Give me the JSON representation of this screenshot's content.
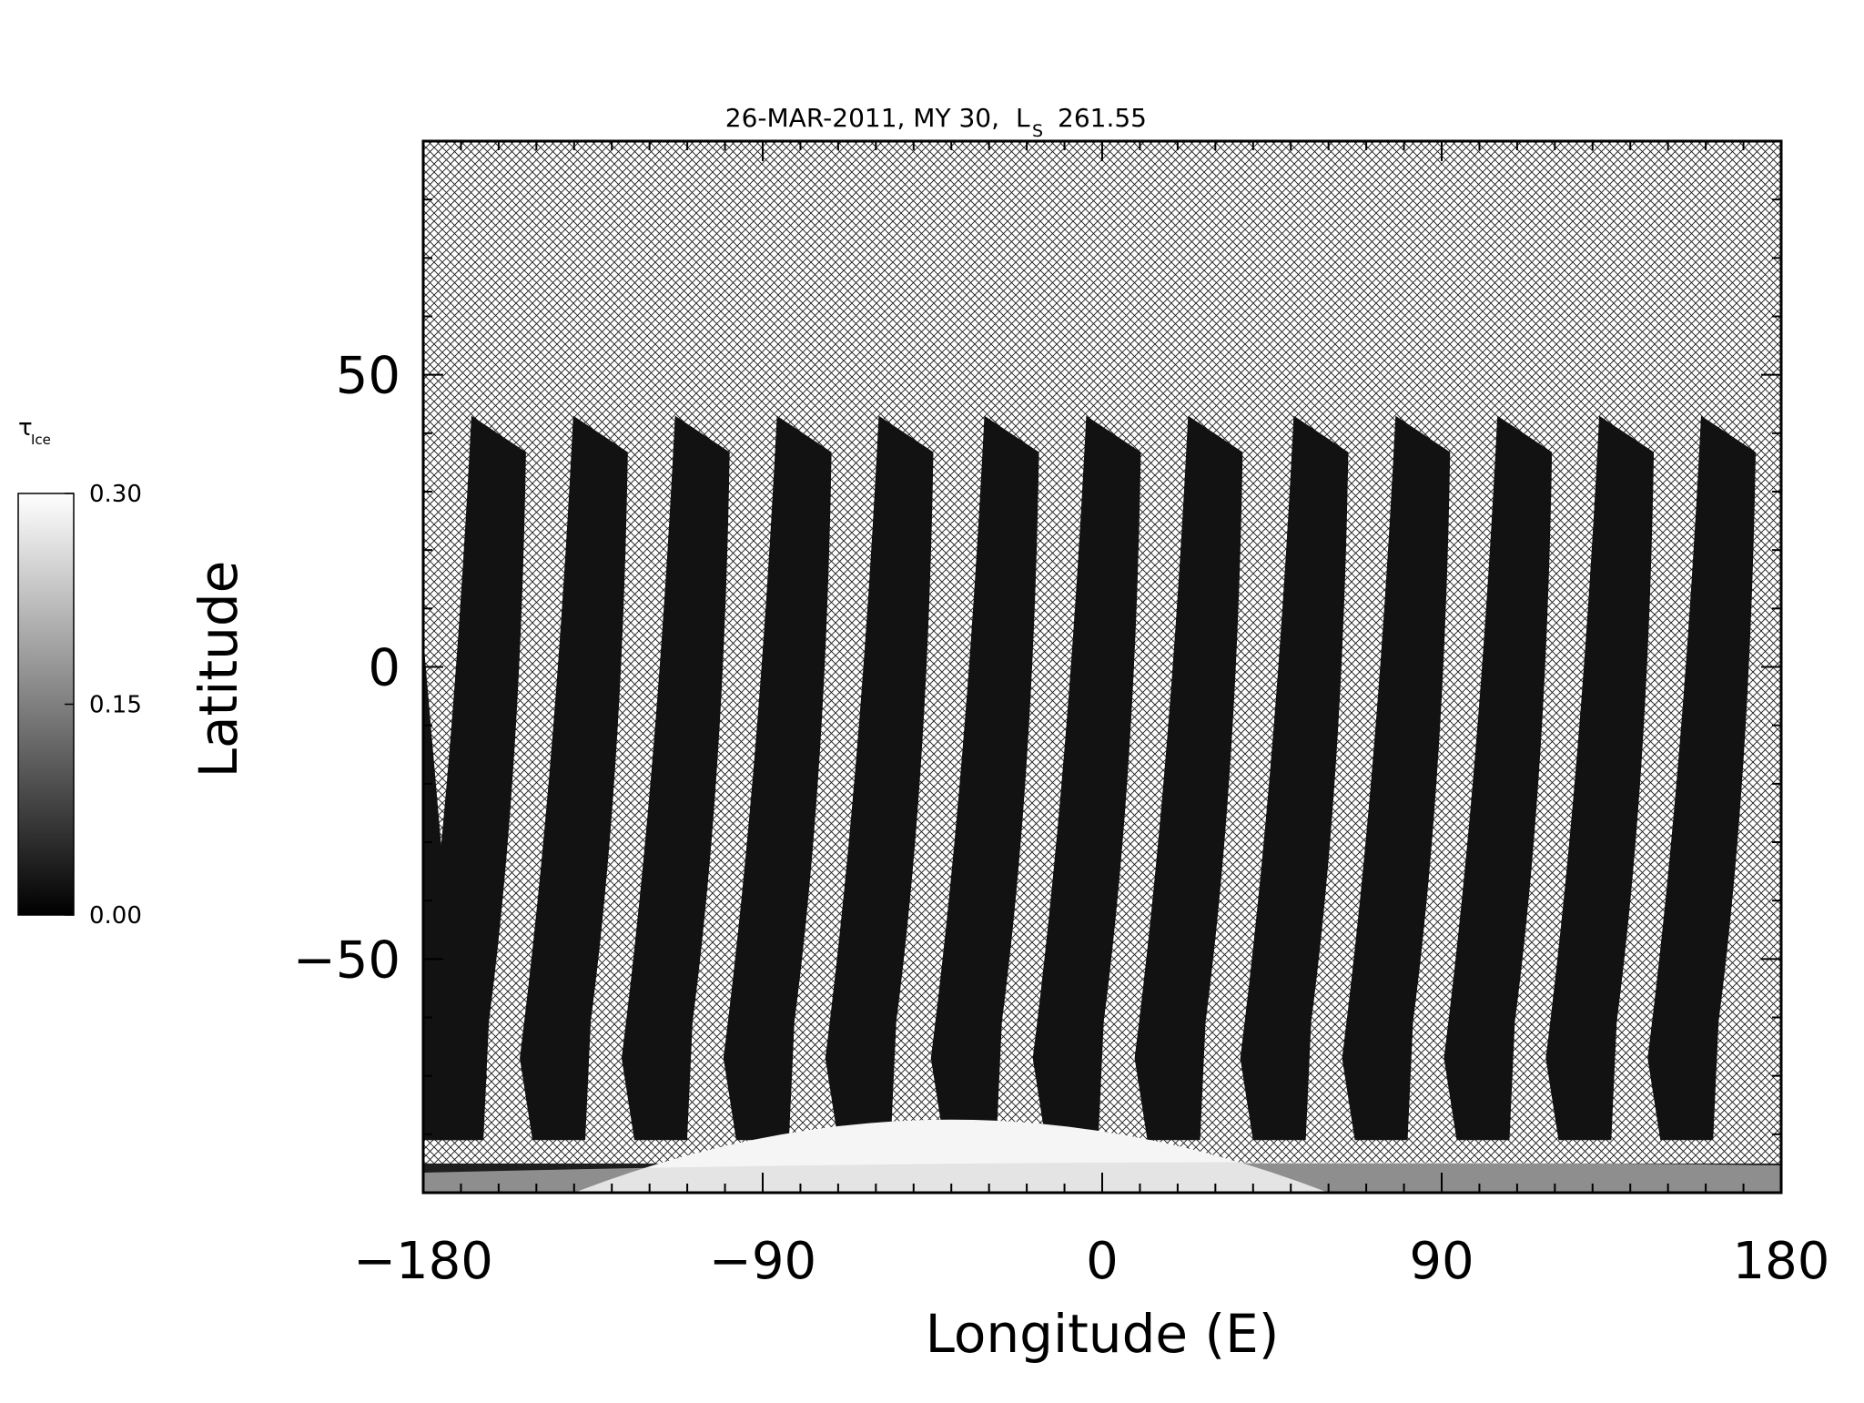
{
  "chart_data": {
    "type": "heatmap",
    "title": "26-MAR-2011, MY 30,",
    "title_ls_symbol": "L",
    "title_ls_sub": "S",
    "title_ls_value": "261.55",
    "xlabel": "Longitude (E)",
    "ylabel": "Latitude",
    "xlim": [
      -180,
      180
    ],
    "ylim": [
      -90,
      90
    ],
    "xticks": [
      -180,
      -90,
      0,
      90,
      180
    ],
    "xtick_labels": [
      "−180",
      "−90",
      "0",
      "90",
      "180"
    ],
    "yticks": [
      -50,
      0,
      50
    ],
    "ytick_labels": [
      "−50",
      "0",
      "50"
    ],
    "no_data_pattern": "crosshatch",
    "colorbar": {
      "label_symbol": "τ",
      "label_sub": "Ice",
      "min": 0.0,
      "max": 0.3,
      "ticks": [
        0.0,
        0.15,
        0.3
      ],
      "tick_labels": [
        "0.00",
        "0.15",
        "0.30"
      ],
      "colormap": "grayscale",
      "color_low": "#000000",
      "color_high": "#ffffff"
    },
    "swaths": [
      {
        "lon_top": -160,
        "lon_bottom": -172
      },
      {
        "lon_top": -133,
        "lon_bottom": -145
      },
      {
        "lon_top": -106,
        "lon_bottom": -118
      },
      {
        "lon_top": -79,
        "lon_bottom": -91
      },
      {
        "lon_top": -52,
        "lon_bottom": -64
      },
      {
        "lon_top": -24,
        "lon_bottom": -36
      },
      {
        "lon_top": 3,
        "lon_bottom": -9
      },
      {
        "lon_top": 30,
        "lon_bottom": 18
      },
      {
        "lon_top": 58,
        "lon_bottom": 46
      },
      {
        "lon_top": 85,
        "lon_bottom": 73
      },
      {
        "lon_top": 112,
        "lon_bottom": 100
      },
      {
        "lon_top": 139,
        "lon_bottom": 127
      },
      {
        "lon_top": 166,
        "lon_bottom": 154
      }
    ],
    "swath_lat_range": [
      -81,
      43
    ],
    "polar_cap": {
      "lat_edge": -72,
      "lon_range": [
        -140,
        60
      ],
      "value": 0.3
    }
  }
}
